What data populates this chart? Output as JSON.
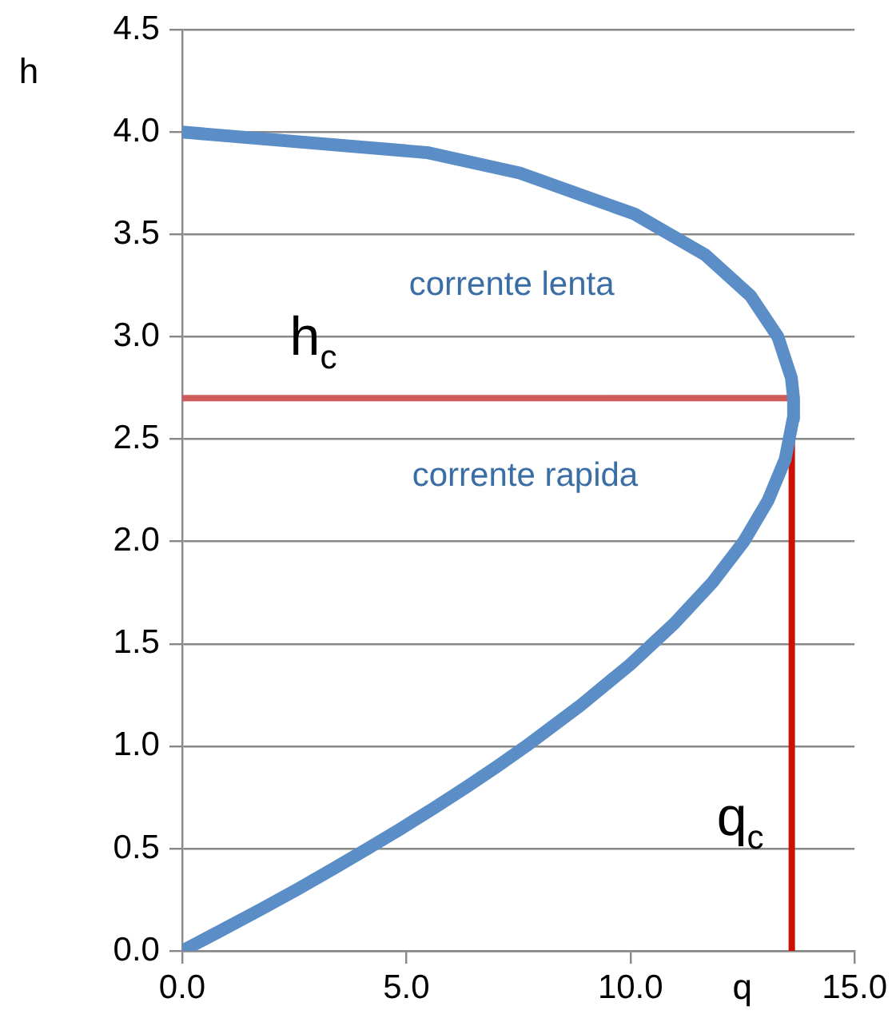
{
  "chart_data": {
    "type": "line",
    "xlabel": "q",
    "ylabel": "h",
    "xlim": [
      0,
      15
    ],
    "xticks": [
      {
        "value": 0,
        "label": "0.0"
      },
      {
        "value": 5,
        "label": "5.0"
      },
      {
        "value": 10,
        "label": "10.0"
      },
      {
        "value": 15,
        "label": "15.0"
      }
    ],
    "ylim": [
      0,
      4.5
    ],
    "yticks": [
      {
        "value": 0,
        "label": "0.0"
      },
      {
        "value": 0.5,
        "label": "0.5"
      },
      {
        "value": 1,
        "label": "1.0"
      },
      {
        "value": 1.5,
        "label": "1.5"
      },
      {
        "value": 2,
        "label": "2.0"
      },
      {
        "value": 2.5,
        "label": "2.5"
      },
      {
        "value": 3,
        "label": "3.0"
      },
      {
        "value": 3.5,
        "label": "3.5"
      },
      {
        "value": 4,
        "label": "4.0"
      },
      {
        "value": 4.5,
        "label": "4.5"
      }
    ],
    "grid": "y",
    "legend": false,
    "marker": "none",
    "line_style": "solid",
    "series": [
      {
        "color": "#5b8ec6",
        "x": [
          0,
          0.87,
          1.73,
          2.56,
          3.36,
          4.14,
          4.9,
          5.63,
          6.34,
          7.02,
          7.67,
          8.89,
          10.0,
          10.98,
          11.83,
          12.53,
          13.07,
          13.45,
          13.63,
          13.64,
          13.59,
          13.29,
          12.68,
          11.67,
          10.09,
          7.53,
          5.46,
          0
        ],
        "values": [
          0,
          0.1,
          0.2,
          0.3,
          0.4,
          0.5,
          0.6,
          0.7,
          0.8,
          0.9,
          1.0,
          1.2,
          1.4,
          1.6,
          1.8,
          2.0,
          2.2,
          2.4,
          2.6,
          2.7,
          2.8,
          3.0,
          3.2,
          3.4,
          3.6,
          3.8,
          3.9,
          4.0
        ]
      },
      {
        "color": "#cd5c5a",
        "x": [
          0,
          13.6
        ],
        "values": [
          2.7,
          2.7
        ]
      },
      {
        "color": "#cc1100",
        "x": [
          13.6,
          13.6
        ],
        "values": [
          2.7,
          0
        ]
      }
    ],
    "annotations": [
      "h$_{c}$",
      "q$_{c}$",
      "corrente lenta",
      "corrente rapida"
    ]
  }
}
